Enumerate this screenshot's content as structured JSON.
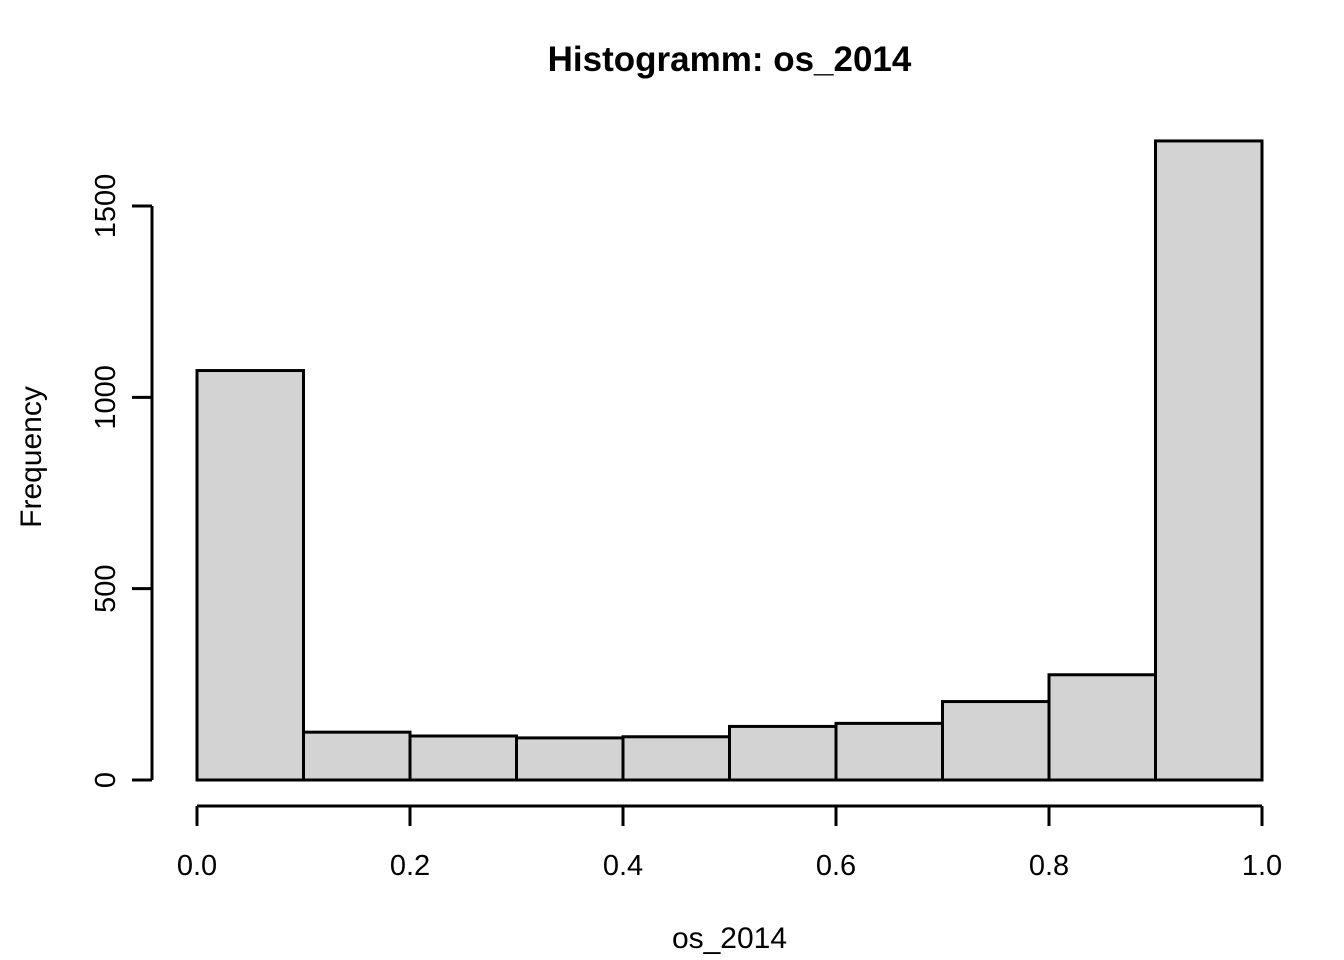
{
  "chart_data": {
    "type": "bar",
    "subtype": "histogram",
    "title": "Histogramm: os_2014",
    "xlabel": "os_2014",
    "ylabel": "Frequency",
    "bin_edges": [
      0.0,
      0.1,
      0.2,
      0.3,
      0.4,
      0.5,
      0.6,
      0.7,
      0.8,
      0.9,
      1.0
    ],
    "counts": [
      1070,
      125,
      115,
      110,
      113,
      140,
      148,
      205,
      275,
      1670
    ],
    "x_ticks": [
      "0.0",
      "0.2",
      "0.4",
      "0.6",
      "0.8",
      "1.0"
    ],
    "x_tick_values": [
      0.0,
      0.2,
      0.4,
      0.6,
      0.8,
      1.0
    ],
    "y_ticks": [
      "0",
      "500",
      "1000",
      "1500"
    ],
    "y_tick_values": [
      0,
      500,
      1000,
      1500
    ],
    "xlim": [
      0.0,
      1.0
    ],
    "ylim": [
      0,
      1673
    ],
    "grid": false,
    "legend": null,
    "bar_fill": "#d3d3d3",
    "bar_stroke": "#000000",
    "axis_color": "#000000",
    "text_color": "#000000",
    "background": "#ffffff"
  }
}
